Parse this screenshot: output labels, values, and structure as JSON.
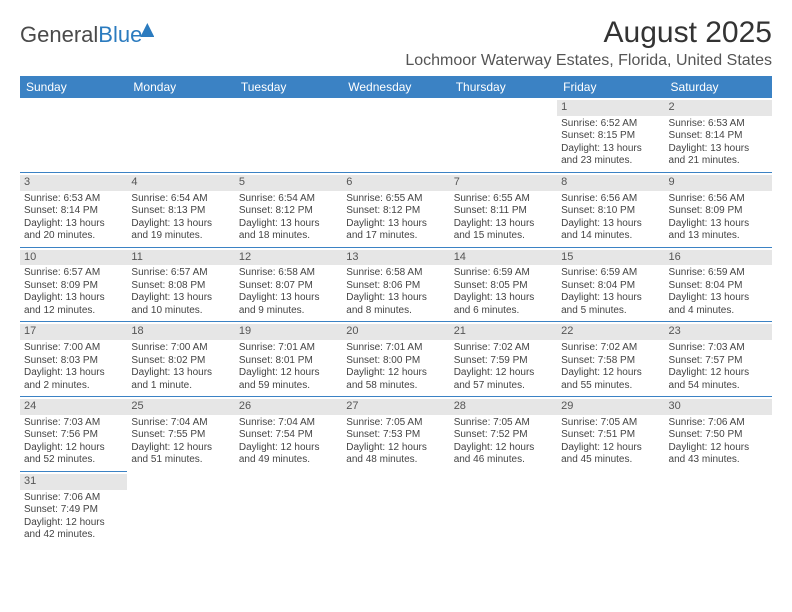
{
  "logo": {
    "part1": "General",
    "part2": "Blue"
  },
  "header": {
    "month_title": "August 2025",
    "location": "Lochmoor Waterway Estates, Florida, United States"
  },
  "colors": {
    "header_bg": "#3b82c4",
    "header_text": "#ffffff",
    "daynum_bg": "#e6e6e6",
    "border": "#3b82c4",
    "logo_blue": "#2b7bbf"
  },
  "daynames": [
    "Sunday",
    "Monday",
    "Tuesday",
    "Wednesday",
    "Thursday",
    "Friday",
    "Saturday"
  ],
  "weeks": [
    [
      null,
      null,
      null,
      null,
      null,
      {
        "n": "1",
        "sr": "Sunrise: 6:52 AM",
        "ss": "Sunset: 8:15 PM",
        "d1": "Daylight: 13 hours",
        "d2": "and 23 minutes."
      },
      {
        "n": "2",
        "sr": "Sunrise: 6:53 AM",
        "ss": "Sunset: 8:14 PM",
        "d1": "Daylight: 13 hours",
        "d2": "and 21 minutes."
      }
    ],
    [
      {
        "n": "3",
        "sr": "Sunrise: 6:53 AM",
        "ss": "Sunset: 8:14 PM",
        "d1": "Daylight: 13 hours",
        "d2": "and 20 minutes."
      },
      {
        "n": "4",
        "sr": "Sunrise: 6:54 AM",
        "ss": "Sunset: 8:13 PM",
        "d1": "Daylight: 13 hours",
        "d2": "and 19 minutes."
      },
      {
        "n": "5",
        "sr": "Sunrise: 6:54 AM",
        "ss": "Sunset: 8:12 PM",
        "d1": "Daylight: 13 hours",
        "d2": "and 18 minutes."
      },
      {
        "n": "6",
        "sr": "Sunrise: 6:55 AM",
        "ss": "Sunset: 8:12 PM",
        "d1": "Daylight: 13 hours",
        "d2": "and 17 minutes."
      },
      {
        "n": "7",
        "sr": "Sunrise: 6:55 AM",
        "ss": "Sunset: 8:11 PM",
        "d1": "Daylight: 13 hours",
        "d2": "and 15 minutes."
      },
      {
        "n": "8",
        "sr": "Sunrise: 6:56 AM",
        "ss": "Sunset: 8:10 PM",
        "d1": "Daylight: 13 hours",
        "d2": "and 14 minutes."
      },
      {
        "n": "9",
        "sr": "Sunrise: 6:56 AM",
        "ss": "Sunset: 8:09 PM",
        "d1": "Daylight: 13 hours",
        "d2": "and 13 minutes."
      }
    ],
    [
      {
        "n": "10",
        "sr": "Sunrise: 6:57 AM",
        "ss": "Sunset: 8:09 PM",
        "d1": "Daylight: 13 hours",
        "d2": "and 12 minutes."
      },
      {
        "n": "11",
        "sr": "Sunrise: 6:57 AM",
        "ss": "Sunset: 8:08 PM",
        "d1": "Daylight: 13 hours",
        "d2": "and 10 minutes."
      },
      {
        "n": "12",
        "sr": "Sunrise: 6:58 AM",
        "ss": "Sunset: 8:07 PM",
        "d1": "Daylight: 13 hours",
        "d2": "and 9 minutes."
      },
      {
        "n": "13",
        "sr": "Sunrise: 6:58 AM",
        "ss": "Sunset: 8:06 PM",
        "d1": "Daylight: 13 hours",
        "d2": "and 8 minutes."
      },
      {
        "n": "14",
        "sr": "Sunrise: 6:59 AM",
        "ss": "Sunset: 8:05 PM",
        "d1": "Daylight: 13 hours",
        "d2": "and 6 minutes."
      },
      {
        "n": "15",
        "sr": "Sunrise: 6:59 AM",
        "ss": "Sunset: 8:04 PM",
        "d1": "Daylight: 13 hours",
        "d2": "and 5 minutes."
      },
      {
        "n": "16",
        "sr": "Sunrise: 6:59 AM",
        "ss": "Sunset: 8:04 PM",
        "d1": "Daylight: 13 hours",
        "d2": "and 4 minutes."
      }
    ],
    [
      {
        "n": "17",
        "sr": "Sunrise: 7:00 AM",
        "ss": "Sunset: 8:03 PM",
        "d1": "Daylight: 13 hours",
        "d2": "and 2 minutes."
      },
      {
        "n": "18",
        "sr": "Sunrise: 7:00 AM",
        "ss": "Sunset: 8:02 PM",
        "d1": "Daylight: 13 hours",
        "d2": "and 1 minute."
      },
      {
        "n": "19",
        "sr": "Sunrise: 7:01 AM",
        "ss": "Sunset: 8:01 PM",
        "d1": "Daylight: 12 hours",
        "d2": "and 59 minutes."
      },
      {
        "n": "20",
        "sr": "Sunrise: 7:01 AM",
        "ss": "Sunset: 8:00 PM",
        "d1": "Daylight: 12 hours",
        "d2": "and 58 minutes."
      },
      {
        "n": "21",
        "sr": "Sunrise: 7:02 AM",
        "ss": "Sunset: 7:59 PM",
        "d1": "Daylight: 12 hours",
        "d2": "and 57 minutes."
      },
      {
        "n": "22",
        "sr": "Sunrise: 7:02 AM",
        "ss": "Sunset: 7:58 PM",
        "d1": "Daylight: 12 hours",
        "d2": "and 55 minutes."
      },
      {
        "n": "23",
        "sr": "Sunrise: 7:03 AM",
        "ss": "Sunset: 7:57 PM",
        "d1": "Daylight: 12 hours",
        "d2": "and 54 minutes."
      }
    ],
    [
      {
        "n": "24",
        "sr": "Sunrise: 7:03 AM",
        "ss": "Sunset: 7:56 PM",
        "d1": "Daylight: 12 hours",
        "d2": "and 52 minutes."
      },
      {
        "n": "25",
        "sr": "Sunrise: 7:04 AM",
        "ss": "Sunset: 7:55 PM",
        "d1": "Daylight: 12 hours",
        "d2": "and 51 minutes."
      },
      {
        "n": "26",
        "sr": "Sunrise: 7:04 AM",
        "ss": "Sunset: 7:54 PM",
        "d1": "Daylight: 12 hours",
        "d2": "and 49 minutes."
      },
      {
        "n": "27",
        "sr": "Sunrise: 7:05 AM",
        "ss": "Sunset: 7:53 PM",
        "d1": "Daylight: 12 hours",
        "d2": "and 48 minutes."
      },
      {
        "n": "28",
        "sr": "Sunrise: 7:05 AM",
        "ss": "Sunset: 7:52 PM",
        "d1": "Daylight: 12 hours",
        "d2": "and 46 minutes."
      },
      {
        "n": "29",
        "sr": "Sunrise: 7:05 AM",
        "ss": "Sunset: 7:51 PM",
        "d1": "Daylight: 12 hours",
        "d2": "and 45 minutes."
      },
      {
        "n": "30",
        "sr": "Sunrise: 7:06 AM",
        "ss": "Sunset: 7:50 PM",
        "d1": "Daylight: 12 hours",
        "d2": "and 43 minutes."
      }
    ],
    [
      {
        "n": "31",
        "sr": "Sunrise: 7:06 AM",
        "ss": "Sunset: 7:49 PM",
        "d1": "Daylight: 12 hours",
        "d2": "and 42 minutes."
      },
      null,
      null,
      null,
      null,
      null,
      null
    ]
  ]
}
